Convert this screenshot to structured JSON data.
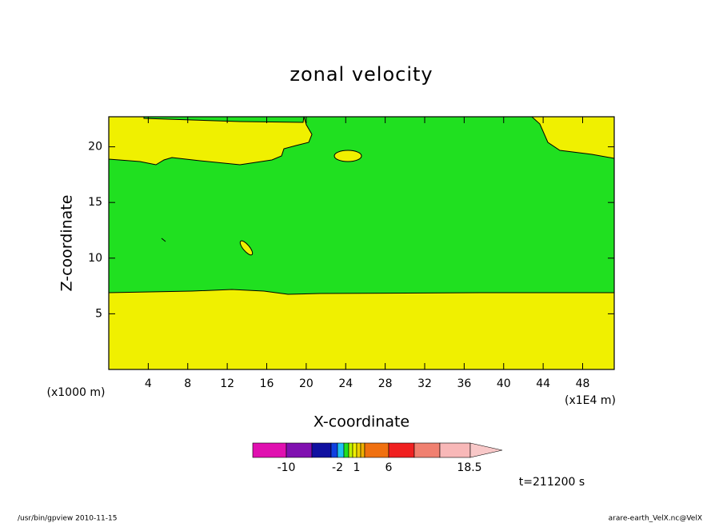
{
  "chart_data": {
    "type": "contour",
    "title": "zonal velocity",
    "xlabel": "X-coordinate",
    "ylabel": "Z-coordinate",
    "xunit": "(x1000 m)",
    "xunit2": "(x1E4 m)",
    "xlim": [
      0,
      51.2
    ],
    "ylim": [
      0,
      22.7
    ],
    "xticks": [
      4,
      8,
      12,
      16,
      20,
      24,
      28,
      32,
      36,
      40,
      44,
      48
    ],
    "yticks": [
      5,
      10,
      15,
      20
    ],
    "colorbar": {
      "colors": [
        "#e010b0",
        "#8010b0",
        "#1010a0",
        "#1040e0",
        "#20c0f0",
        "#20e020",
        "#c0f000",
        "#f0f000",
        "#f0d000",
        "#f0b000",
        "#f07010",
        "#f02020",
        "#f08070",
        "#f8b8b8",
        "#f8c8c8"
      ],
      "labels": [
        -10,
        -2,
        1,
        6,
        18.5
      ]
    },
    "time_label": "t=211200 s",
    "footer_left": "/usr/bin/gpview  2010-11-15",
    "footer_right": "arare-earth_VelX.nc@VelX"
  }
}
